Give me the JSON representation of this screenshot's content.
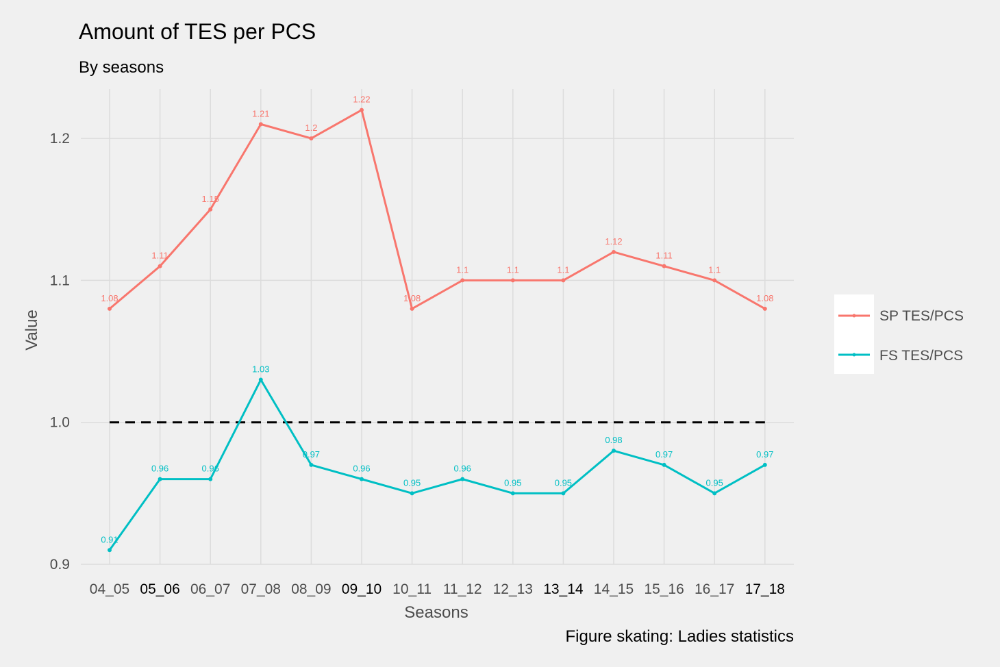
{
  "chart_data": {
    "type": "line",
    "title": "Amount of TES per PCS",
    "subtitle": "By seasons",
    "xlabel": "Seasons",
    "ylabel": "Value",
    "caption": "Figure skating: Ladies statistics",
    "categories": [
      "04_05",
      "05_06",
      "06_07",
      "07_08",
      "08_09",
      "09_10",
      "10_11",
      "11_12",
      "12_13",
      "13_14",
      "14_15",
      "15_16",
      "16_17",
      "17_18"
    ],
    "emphasized_categories": [
      "05_06",
      "09_10",
      "13_14",
      "17_18"
    ],
    "ylim": [
      0.9,
      1.23
    ],
    "yticks": [
      0.9,
      1.0,
      1.1,
      1.2
    ],
    "ytick_labels": [
      "0.9",
      "1.0",
      "1.1",
      "1.2"
    ],
    "grid": true,
    "reference_line": {
      "value": 1.0,
      "style": "dashed",
      "color": "#000000"
    },
    "legend_position": "right",
    "series": [
      {
        "name": "SP TES/PCS",
        "color": "#f8766d",
        "values": [
          1.08,
          1.11,
          1.15,
          1.21,
          1.2,
          1.22,
          1.08,
          1.1,
          1.1,
          1.1,
          1.12,
          1.11,
          1.1,
          1.08
        ],
        "labels": [
          "1.08",
          "1.11",
          "1.15",
          "1.21",
          "1.2",
          "1.22",
          "1.08",
          "1.1",
          "1.1",
          "1.1",
          "1.12",
          "1.11",
          "1.1",
          "1.08"
        ]
      },
      {
        "name": "FS TES/PCS",
        "color": "#00bfc4",
        "values": [
          0.91,
          0.96,
          0.96,
          1.03,
          0.97,
          0.96,
          0.95,
          0.96,
          0.95,
          0.95,
          0.98,
          0.97,
          0.95,
          0.97
        ],
        "labels": [
          "0.91",
          "0.96",
          "0.96",
          "1.03",
          "0.97",
          "0.96",
          "0.95",
          "0.96",
          "0.95",
          "0.95",
          "0.98",
          "0.97",
          "0.95",
          "0.97"
        ]
      }
    ]
  }
}
